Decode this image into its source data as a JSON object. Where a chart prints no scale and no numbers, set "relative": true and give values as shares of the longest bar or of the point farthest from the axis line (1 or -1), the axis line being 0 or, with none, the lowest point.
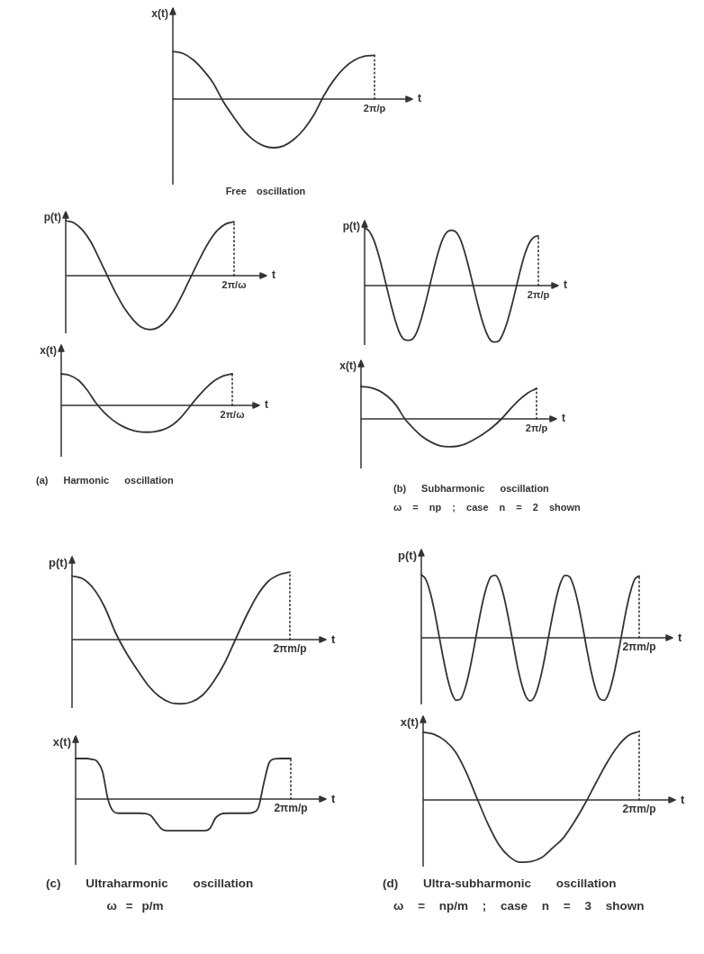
{
  "chart_data": [
    {
      "type": "line",
      "title": "Free oscillation",
      "xlabel": "t",
      "ylabel": "x(t)",
      "annotations": [
        "2π/p"
      ],
      "categories": [
        null,
        null,
        null,
        null,
        null,
        null,
        null,
        null,
        null,
        null,
        null,
        null,
        null,
        null,
        null,
        null,
        null,
        null,
        null,
        null,
        null
      ],
      "values": [
        0.98,
        0.94,
        0.81,
        0.6,
        0.33,
        -0.05,
        -0.36,
        -0.64,
        -0.84,
        -0.96,
        -1,
        -0.96,
        -0.83,
        -0.62,
        -0.32,
        0.08,
        0.4,
        0.64,
        0.8,
        0.88,
        0.9
      ],
      "color": "#333333",
      "relative": true,
      "marker": "none"
    },
    {
      "type": "line",
      "xlabel": "t",
      "ylabel": "p(t)",
      "annotations": [
        "2π/ω"
      ],
      "categories": [
        null,
        null,
        null,
        null,
        null,
        null,
        null,
        null,
        null,
        null,
        null,
        null,
        null,
        null,
        null,
        null,
        null,
        null,
        null,
        null,
        null
      ],
      "values": [
        1,
        0.96,
        0.83,
        0.61,
        0.3,
        -0.02,
        -0.33,
        -0.6,
        -0.8,
        -0.94,
        -0.98,
        -0.94,
        -0.81,
        -0.59,
        -0.3,
        0.02,
        0.33,
        0.61,
        0.82,
        0.94,
        0.98
      ],
      "color": "#333333",
      "relative": true,
      "marker": "none"
    },
    {
      "type": "line",
      "title": "(a) Harmonic oscillation",
      "xlabel": "t",
      "ylabel": "x(t)",
      "annotations": [
        "2π/ω"
      ],
      "categories": [
        null,
        null,
        null,
        null,
        null,
        null,
        null,
        null,
        null,
        null,
        null,
        null,
        null,
        null,
        null,
        null,
        null,
        null,
        null,
        null,
        null
      ],
      "values": [
        1,
        0.95,
        0.8,
        0.5,
        0.1,
        -0.22,
        -0.46,
        -0.64,
        -0.76,
        -0.83,
        -0.85,
        -0.83,
        -0.76,
        -0.62,
        -0.38,
        -0.05,
        0.28,
        0.57,
        0.8,
        0.94,
        1
      ],
      "color": "#333333",
      "relative": true,
      "marker": "none"
    },
    {
      "type": "line",
      "xlabel": "t",
      "ylabel": "p(t)",
      "annotations": [
        "2π/p"
      ],
      "categories": [
        null,
        null,
        null,
        null,
        null,
        null,
        null,
        null,
        null,
        null,
        null,
        null,
        null,
        null,
        null,
        null,
        null,
        null,
        null,
        null,
        null,
        null,
        null,
        null,
        null,
        null,
        null,
        null,
        null,
        null,
        null,
        null,
        null,
        null,
        null,
        null,
        null,
        null,
        null,
        null,
        null
      ],
      "values": [
        1,
        0.95,
        0.81,
        0.59,
        0.31,
        0,
        -0.31,
        -0.59,
        -0.81,
        -0.93,
        -0.95,
        -0.93,
        -0.81,
        -0.59,
        -0.31,
        0,
        0.31,
        0.59,
        0.81,
        0.93,
        0.96,
        0.93,
        0.81,
        0.59,
        0.31,
        0,
        -0.31,
        -0.59,
        -0.81,
        -0.95,
        -0.98,
        -0.95,
        -0.81,
        -0.59,
        -0.31,
        0,
        0.31,
        0.57,
        0.75,
        0.84,
        0.86
      ],
      "color": "#333333",
      "relative": true,
      "marker": "none"
    },
    {
      "type": "line",
      "title": "(b) Subharmonic oscillation",
      "subtitle": "ω = np ; case n = 2 shown",
      "xlabel": "t",
      "ylabel": "x(t)",
      "annotations": [
        "2π/p"
      ],
      "categories": [
        null,
        null,
        null,
        null,
        null,
        null,
        null,
        null,
        null,
        null,
        null,
        null,
        null,
        null,
        null,
        null,
        null,
        null,
        null,
        null,
        null
      ],
      "values": [
        1,
        0.97,
        0.88,
        0.7,
        0.42,
        0,
        -0.3,
        -0.55,
        -0.72,
        -0.83,
        -0.86,
        -0.84,
        -0.76,
        -0.62,
        -0.45,
        -0.25,
        0,
        0.3,
        0.58,
        0.8,
        0.94
      ],
      "color": "#333333",
      "relative": true,
      "marker": "none"
    },
    {
      "type": "line",
      "xlabel": "t",
      "ylabel": "p(t)",
      "annotations": [
        "2πm/p"
      ],
      "categories": [
        null,
        null,
        null,
        null,
        null,
        null,
        null,
        null,
        null,
        null,
        null,
        null,
        null,
        null,
        null,
        null,
        null,
        null,
        null,
        null,
        null
      ],
      "values": [
        0.94,
        0.9,
        0.75,
        0.48,
        0.1,
        -0.2,
        -0.45,
        -0.68,
        -0.84,
        -0.93,
        -0.95,
        -0.92,
        -0.82,
        -0.62,
        -0.35,
        0,
        0.35,
        0.65,
        0.86,
        0.96,
        1
      ],
      "color": "#333333",
      "relative": true,
      "marker": "none"
    },
    {
      "type": "line",
      "title": "(c) Ultraharmonic oscillation",
      "subtitle": "ω = p/m",
      "xlabel": "t",
      "ylabel": "x(t)",
      "annotations": [
        "2πm/p"
      ],
      "categories": [
        null,
        null,
        null,
        null,
        null,
        null,
        null,
        null,
        null,
        null,
        null,
        null,
        null,
        null,
        null,
        null,
        null,
        null,
        null,
        null,
        null,
        null,
        null,
        null,
        null,
        null,
        null,
        null,
        null,
        null,
        null,
        null,
        null,
        null,
        null,
        null,
        null,
        null,
        null,
        null,
        null
      ],
      "values": [
        1,
        1,
        1,
        0.98,
        0.93,
        0.68,
        0,
        -0.3,
        -0.35,
        -0.35,
        -0.35,
        -0.35,
        -0.35,
        -0.36,
        -0.41,
        -0.58,
        -0.74,
        -0.78,
        -0.78,
        -0.78,
        -0.78,
        -0.78,
        -0.78,
        -0.78,
        -0.78,
        -0.72,
        -0.47,
        -0.37,
        -0.35,
        -0.35,
        -0.35,
        -0.35,
        -0.35,
        -0.33,
        -0.2,
        0.4,
        0.9,
        0.99,
        1,
        1,
        1
      ],
      "color": "#333333",
      "relative": true,
      "marker": "none"
    },
    {
      "type": "line",
      "xlabel": "t",
      "ylabel": "p(t)",
      "annotations": [
        "2πm/p"
      ],
      "categories": [
        null,
        null,
        null,
        null,
        null,
        null,
        null,
        null,
        null,
        null,
        null,
        null,
        null,
        null,
        null,
        null,
        null,
        null,
        null,
        null,
        null,
        null,
        null,
        null,
        null,
        null,
        null,
        null,
        null,
        null,
        null,
        null,
        null,
        null,
        null,
        null,
        null,
        null,
        null,
        null,
        null,
        null,
        null,
        null,
        null,
        null,
        null,
        null,
        null,
        null,
        null
      ],
      "values": [
        1,
        0.93,
        0.73,
        0.43,
        0.06,
        -0.31,
        -0.64,
        -0.88,
        -0.99,
        -0.97,
        -0.81,
        -0.54,
        -0.19,
        0.19,
        0.54,
        0.81,
        0.97,
        0.99,
        0.88,
        0.64,
        0.31,
        -0.06,
        -0.43,
        -0.73,
        -0.93,
        -1,
        -0.93,
        -0.73,
        -0.43,
        -0.06,
        0.31,
        0.64,
        0.88,
        0.99,
        0.97,
        0.81,
        0.54,
        0.19,
        -0.19,
        -0.54,
        -0.81,
        -0.97,
        -0.99,
        -0.88,
        -0.64,
        -0.31,
        0.06,
        0.43,
        0.73,
        0.93,
        0.98
      ],
      "color": "#333333",
      "relative": true,
      "marker": "none"
    },
    {
      "type": "line",
      "title": "(d) Ultra-subharmonic oscillation",
      "subtitle": "ω = np/m ; case n = 3 shown",
      "xlabel": "t",
      "ylabel": "x(t)",
      "annotations": [
        "2πm/p"
      ],
      "categories": [
        null,
        null,
        null,
        null,
        null,
        null,
        null,
        null,
        null,
        null,
        null,
        null,
        null,
        null,
        null,
        null,
        null,
        null,
        null,
        null,
        null
      ],
      "values": [
        0.99,
        0.96,
        0.87,
        0.7,
        0.4,
        0.02,
        -0.35,
        -0.65,
        -0.83,
        -0.91,
        -0.9,
        -0.84,
        -0.7,
        -0.55,
        -0.32,
        -0.05,
        0.25,
        0.54,
        0.78,
        0.94,
        1
      ],
      "color": "#333333",
      "relative": true,
      "marker": "none"
    }
  ]
}
